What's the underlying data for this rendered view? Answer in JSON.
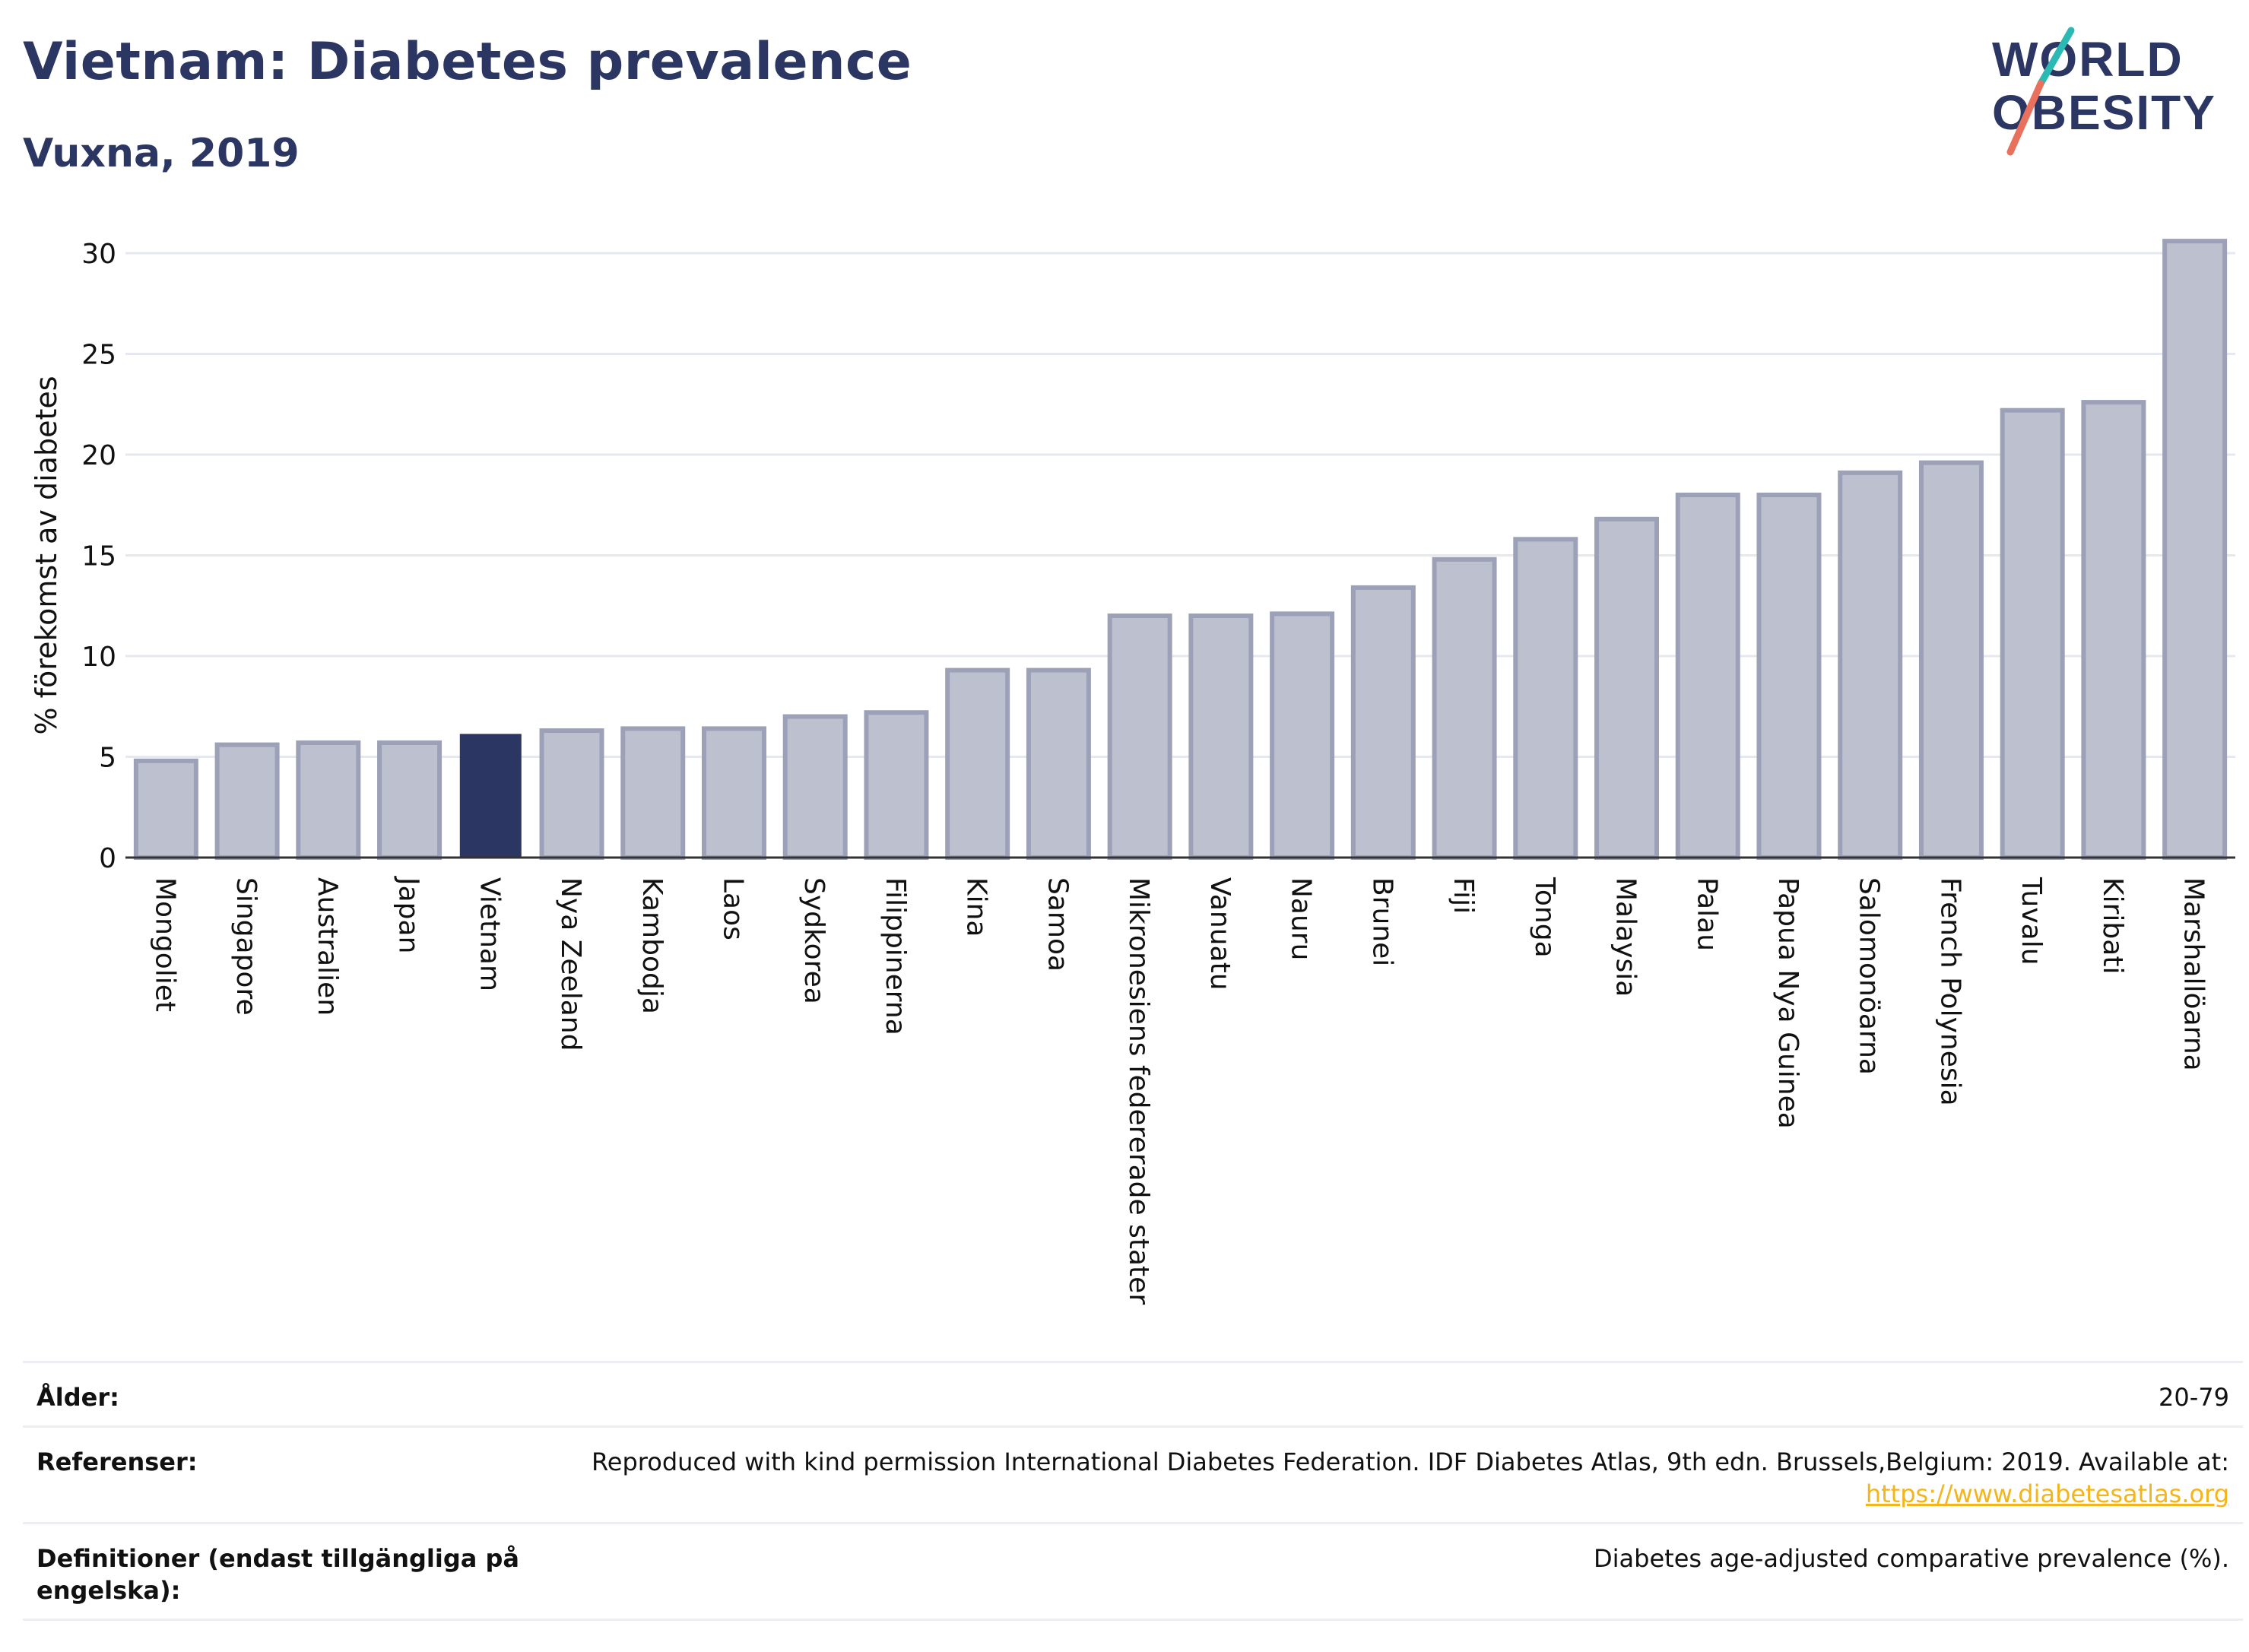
{
  "header": {
    "title": "Vietnam: Diabetes prevalence",
    "subtitle": "Vuxna, 2019",
    "logo_line1": "WORLD",
    "logo_line2": "OBESITY"
  },
  "colors": {
    "title": "#2b3663",
    "bar_default": "#bcc0cf",
    "bar_default_border": "#9ca1b7",
    "bar_highlight": "#2b3663",
    "gridline": "#e6e8ef",
    "logo_teal": "#2bb9b4",
    "logo_coral": "#e8705c"
  },
  "chart_data": {
    "type": "bar",
    "title": "Vietnam: Diabetes prevalence",
    "subtitle": "Vuxna, 2019",
    "xlabel": "",
    "ylabel": "% förekomst av diabetes",
    "ylim": [
      0,
      31
    ],
    "yticks": [
      0,
      5,
      10,
      15,
      20,
      25,
      30
    ],
    "grid": true,
    "highlight": "Vietnam",
    "categories": [
      "Mongoliet",
      "Singapore",
      "Australien",
      "Japan",
      "Vietnam",
      "Nya Zeeland",
      "Kambodja",
      "Laos",
      "Sydkorea",
      "Filippinerna",
      "Kina",
      "Samoa",
      "Mikronesiens federerade stater",
      "Vanuatu",
      "Nauru",
      "Brunei",
      "Fiji",
      "Tonga",
      "Malaysia",
      "Palau",
      "Papua Nya Guinea",
      "Salomonöarna",
      "French Polynesia",
      "Tuvalu",
      "Kiribati",
      "Marshallöarna"
    ],
    "values": [
      4.8,
      5.6,
      5.7,
      5.7,
      6.1,
      6.3,
      6.4,
      6.4,
      7.0,
      7.2,
      9.3,
      9.3,
      12.0,
      12.0,
      12.1,
      13.4,
      14.8,
      15.8,
      16.8,
      18.0,
      18.0,
      19.1,
      19.6,
      22.2,
      22.6,
      30.6
    ]
  },
  "info": {
    "age_label": "Ålder:",
    "age_value": "20-79",
    "refs_label": "Referenser:",
    "refs_value": "Reproduced with kind permission International Diabetes Federation. IDF Diabetes Atlas, 9th edn. Brussels,Belgium: 2019. Available at:",
    "refs_link": "https://www.diabetesatlas.org",
    "defs_label_1": "Definitioner (endast tillgängliga på",
    "defs_label_2": "engelska):",
    "defs_value": "Diabetes age-adjusted comparative prevalence (%)."
  }
}
